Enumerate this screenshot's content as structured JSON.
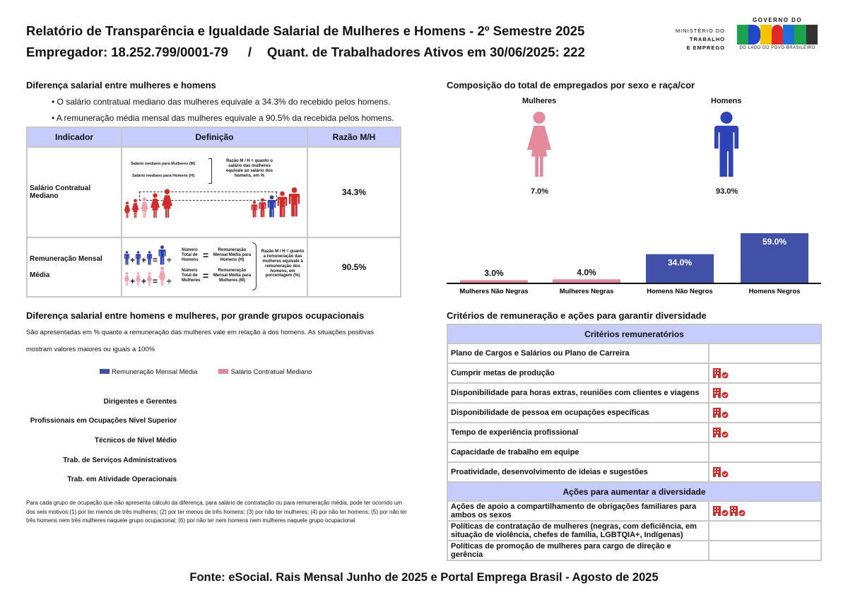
{
  "header": {
    "title": "Relatório de Transparência e Igualdade Salarial de Mulheres e Homens - 2º Semestre 2025",
    "employer": "Empregador: 18.252.799/0001-79",
    "separator": "/",
    "workers": "Quant. de Trabalhadores Ativos em 30/06/2025: 222"
  },
  "logos": {
    "ministry": [
      "MINISTÉRIO DO",
      "TRABALHO",
      "E EMPREGO"
    ],
    "gov_top": "GOVERNO DO",
    "gov_main": "BRASIL",
    "gov_bottom": "DO LADO DO POVO BRASILEIRO"
  },
  "salary_diff": {
    "title": "Diferença salarial entre mulheres e homens",
    "bullets": [
      "• O salário contratual mediano das mulheres equivale a 34.3% do recebido pelos homens.",
      "• A remuneração média mensal das mulheres equivale a 90.5% da recebida pelos homens."
    ],
    "columns": [
      "Indicador",
      "Definição",
      "Razão M/H"
    ],
    "rows": [
      {
        "indicator": "Salário Contratual Mediano",
        "ratio": "34.3%",
        "def": {
          "m": "Salário mediano para Mulheres (M)",
          "h": "Salário mediano para Homens (H)",
          "note": "Razão M / H = quanto o salário das mulheres equivale ao salário dos homens, em %"
        }
      },
      {
        "indicator": "Remuneração Mensal Média",
        "ratio": "90.5%",
        "def": {
          "num_h": "Número Total de Homens",
          "res_h": "Remuneração Mensal Média para Homens (H)",
          "num_m": "Número Total de Mulheres",
          "res_m": "Remuneração Mensal Média para Mulheres (M)",
          "note": "Razão M / H = quanto a remuneração das mulheres equivale à remuneração dos homens, em porcentagem (%)",
          "plus": "+",
          "eq": "=",
          "div": "÷"
        }
      }
    ]
  },
  "composition": {
    "title": "Composição do total de empregados por sexo e raça/cor",
    "women_label": "Mulheres",
    "men_label": "Homens",
    "women_pct": "7.0%",
    "men_pct": "93.0%"
  },
  "chart_data": {
    "type": "bar",
    "categories": [
      "Mulheres Não Negras",
      "Mulheres Negras",
      "Homens Não Negros",
      "Homens Negros"
    ],
    "values": [
      3.0,
      4.0,
      34.0,
      59.0
    ],
    "labels": [
      "3.0%",
      "4.0%",
      "34.0%",
      "59.0%"
    ],
    "colors": [
      "#e08a9c",
      "#e08a9c",
      "#4251a8",
      "#4251a8"
    ],
    "ylim": [
      0,
      60
    ]
  },
  "occupational": {
    "title": "Diferença salarial entre homens e mulheres, por grande grupos ocupacionais",
    "desc1": "São apresentadas em % quanto a remuneração das mulheres vale em relação à dos homens. As situações positivas",
    "desc2": "mostram valores maiores ou iguais a 100%",
    "legend": [
      {
        "label": "Remuneração Mensal Média",
        "color": "#4251a8"
      },
      {
        "label": "Salário Contratual Mediano",
        "color": "#e08a9c"
      }
    ],
    "groups": [
      "Dirigentes e Gerentes",
      "Profissionais em Ocupações Nível Superior",
      "Técnicos de Nível Médio",
      "Trab. de Serviços Administrativos",
      "Trab. em Atividade Operacionais"
    ],
    "note": "Para cada grupo de ocupação que não apresenta cálculo da diferença, para salário de contratação ou para remuneração média, pode ter ocorrido um dos seis motivos:(1) por ter menos de três mulheres; (2) por ter menos de três homens; (3) por não ter mulheres; (4) por não ter homens; (5) por não ter três homens nem três mulheres naquele grupo ocupacional; (6) por não ter nem homens nem mulheres naquele grupo ocupacional"
  },
  "criteria": {
    "title": "Critérios de remuneração e ações para garantir diversidade",
    "header1": "Critérios remuneratórios",
    "items": [
      {
        "label": "Plano de Cargos e Salários ou Plano de Carreira",
        "icons": 0
      },
      {
        "label": "Cumprir metas de produção",
        "icons": 1
      },
      {
        "label": "Disponibilidade para horas extras, reuniões com clientes e viagens",
        "icons": 1
      },
      {
        "label": "Disponibilidade de pessoa em ocupações específicas",
        "icons": 1
      },
      {
        "label": "Tempo de experiência profissional",
        "icons": 1
      },
      {
        "label": "Capacidade de trabalho em equipe",
        "icons": 0
      },
      {
        "label": "Proatividade, desenvolvimento de ideias e sugestões",
        "icons": 1
      }
    ],
    "header2": "Ações para aumentar a diversidade",
    "actions": [
      {
        "label": "Ações de apoio a compartilhamento de obrigações familiares para ambos os sexos",
        "icons": 2
      },
      {
        "label": "Políticas de contratação de mulheres (negras, com deficiência, em situação de violência, chefes de família, LGBTQIA+, Indígenas)",
        "icons": 0
      },
      {
        "label": "Políticas de promoção de mulheres para cargo de direção e gerência",
        "icons": 0
      }
    ]
  },
  "footer": "Fonte: eSocial. Rais Mensal Junho de 2025 e Portal Emprega Brasil - Agosto de 2025"
}
